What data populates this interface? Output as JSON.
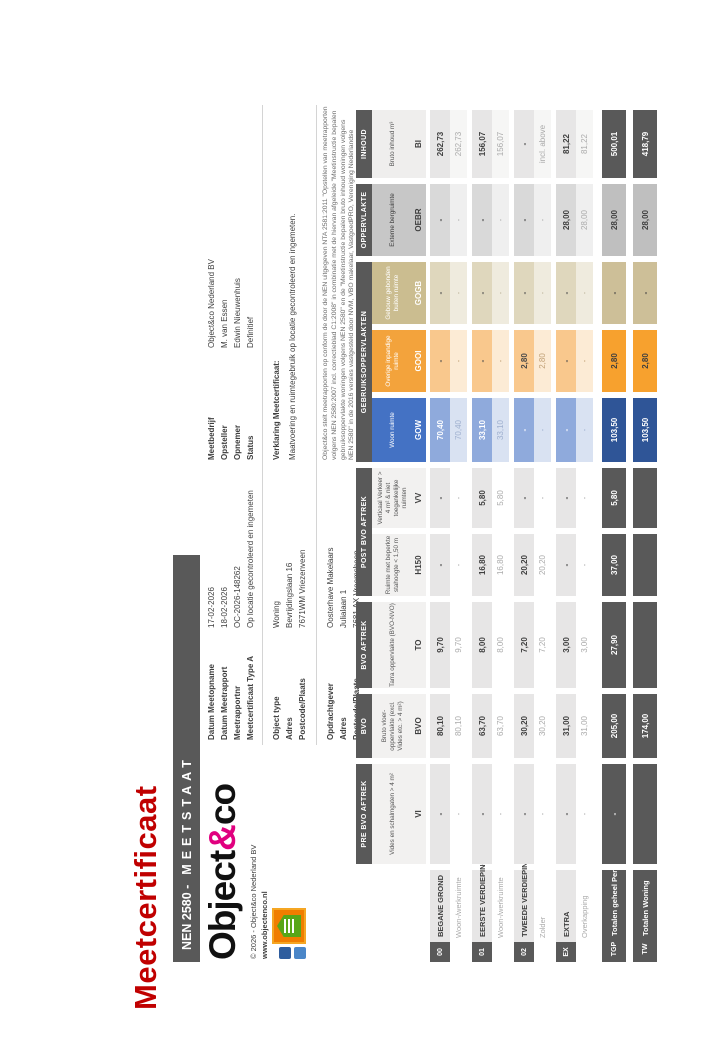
{
  "title": "Meetcertificaat",
  "banner": {
    "prefix": "NEN 2580  -",
    "word": "MEETSTAAT"
  },
  "logo": {
    "part1": "Object",
    "amp": "&",
    "part2": "co",
    "copyright": "© 2026 - Object&co Nederland BV",
    "website": "www.objectenco.nl",
    "badge": "nen-certified-badge"
  },
  "info_a": [
    {
      "label": "Datum Meetopname",
      "value": "17-02-2026"
    },
    {
      "label": "Datum Meetrapport",
      "value": "18-02-2026"
    },
    {
      "label": "Meetrapportnr",
      "value": "OC-2026-148262"
    },
    {
      "label": "Meetcertificaat Type A",
      "value": "Op locatie gecontroleerd en ingemeten"
    }
  ],
  "info_b": [
    {
      "label": "Meetbedrijf",
      "value": "Object&co Nederland BV"
    },
    {
      "label": "Opsteller",
      "value": "M. van Essen"
    },
    {
      "label": "Opnemer",
      "value": "Edwin Nieuwenhuis"
    },
    {
      "label": "Status",
      "value": "Definitief"
    }
  ],
  "info_c": [
    {
      "label": "Object type",
      "value": "Woning"
    },
    {
      "label": "Adres",
      "value": "Bevrijdingslaan 16"
    },
    {
      "label": "Postcode/Plaats",
      "value": "7671WM Vriezenveen"
    }
  ],
  "info_e": [
    {
      "label": "Opdrachtgever",
      "value": "Oosterhave Makelaars"
    },
    {
      "label": "Adres",
      "value": "Julialaan 1"
    },
    {
      "label": "Postcode/Plaats",
      "value": "7681 AX Vroomshoop"
    }
  ],
  "verklaring": {
    "title": "Verklaring Meetcertificaat:",
    "text": "Maatvoering en ruimtegebruik op locatie gecontroleerd en ingemeten."
  },
  "disclaimer": "Object&co stelt meetrapporten op conform de door de NEN uitgegeven NTA 2581:2011 \"Opstellen van meetrapporten volgens NEN 2580:2007 incl. correctieblad C1:2008\" in combinatie met de hiervan afgeleide \"Meetinstructie bepalen gebruiksoppervlakte woningen volgens NEN 2580\" en de \"Meetinstructie bepalen bruto inhoud woningen volgens NEN 2580\" in de 2016 versies vastgesteld door NVM, VBO makelaar, VastgoedPRO, Vereniging Nederlandse Gemeenten en de Waarderingskamer.",
  "table": {
    "groups": [
      {
        "label": "PRE BVO AFTREK",
        "from": 2,
        "to": 2
      },
      {
        "label": "BVO",
        "from": 3,
        "to": 3
      },
      {
        "label": "BVO AFTREK",
        "from": 4,
        "to": 4
      },
      {
        "label": "POST BVO AFTREK",
        "from": 5,
        "to": 6
      },
      {
        "label": "GEBRUIKSOPPERVLAKTEN",
        "from": 7,
        "to": 9
      },
      {
        "label": "OPPERVLAKTE",
        "from": 10,
        "to": 10
      },
      {
        "label": "INHOUD",
        "from": 11,
        "to": 11
      }
    ],
    "columns": [
      {
        "code": "VI",
        "desc": "Vides en schalmgaten > 4 m²",
        "cls": "h-plain"
      },
      {
        "code": "BVO",
        "desc": "Bruto vloer-oppervlakte (excl. Vides etc. > 4 m²)",
        "cls": "h-plain"
      },
      {
        "code": "TO",
        "desc": "Tarra oppervlakte (BVO-NVO)",
        "cls": "h-plain"
      },
      {
        "code": "H150",
        "desc": "Ruimte met beperkte stahoogte < 1,50 m",
        "cls": "h-plain"
      },
      {
        "code": "VV",
        "desc": "Verticaal Verkeer > 4 m² & niet toegankelijke ruimten",
        "cls": "h-plain"
      },
      {
        "code": "GOW",
        "desc": "Woon ruimte",
        "cls": "h-gow"
      },
      {
        "code": "GOOI",
        "desc": "Overige inpandige ruimte",
        "cls": "h-gooi"
      },
      {
        "code": "GOGB",
        "desc": "Gebouw gebonden buiten ruimte",
        "cls": "h-gogb"
      },
      {
        "code": "OEBR",
        "desc": "Externe bergruimte",
        "cls": "h-oebr"
      },
      {
        "code": "BI",
        "desc": "Bruto inhoud m³",
        "cls": "h-bi"
      }
    ],
    "floors": [
      {
        "badge": "00",
        "name": "BEGANE GROND",
        "sub": "Woon-/werkruimte",
        "values": [
          "-",
          "80,10",
          "9,70",
          "-",
          "-",
          "70,40",
          "-",
          "-",
          "-",
          "262,73"
        ],
        "subvalues": [
          "-",
          "80,10",
          "9,70",
          "-",
          "-",
          "70,40",
          "-",
          "-",
          "-",
          "262,73"
        ]
      },
      {
        "badge": "01",
        "name": "EERSTE VERDIEPING",
        "sub": "Woon-/werkruimte",
        "values": [
          "-",
          "63,70",
          "8,00",
          "16,80",
          "5,80",
          "33,10",
          "-",
          "-",
          "-",
          "156,07"
        ],
        "subvalues": [
          "-",
          "63,70",
          "8,00",
          "16,80",
          "5,80",
          "33,10",
          "-",
          "-",
          "-",
          "156,07"
        ]
      },
      {
        "badge": "02",
        "name": "TWEEDE VERDIEPING",
        "sub": "Zolder",
        "values": [
          "-",
          "30,20",
          "7,20",
          "20,20",
          "-",
          "-",
          "2,80",
          "-",
          "-",
          "-"
        ],
        "subvalues": [
          "-",
          "30,20",
          "7,20",
          "20,20",
          "-",
          "-",
          "2,80",
          "-",
          "-",
          "incl. above"
        ]
      },
      {
        "badge": "EX",
        "name": "EXTRA",
        "sub": "Overkapping",
        "values": [
          "-",
          "31,00",
          "3,00",
          "-",
          "-",
          "-",
          "-",
          "-",
          "28,00",
          "81,22"
        ],
        "subvalues": [
          "-",
          "31,00",
          "3,00",
          "-",
          "-",
          "-",
          "-",
          "-",
          "28,00",
          "81,22"
        ]
      }
    ],
    "totals": [
      {
        "badge": "TGP",
        "name": "Totalen geheel Perceel",
        "values": [
          "-",
          "205,00",
          "27,90",
          "37,00",
          "5,80",
          "103,50",
          "2,80",
          "-",
          "28,00",
          "500,01"
        ]
      },
      {
        "badge": "TW",
        "name": "Totalen Woning",
        "values": [
          "",
          "174,00",
          "",
          "",
          "",
          "103,50",
          "2,80",
          "-",
          "28,00",
          "418,79"
        ]
      }
    ]
  }
}
